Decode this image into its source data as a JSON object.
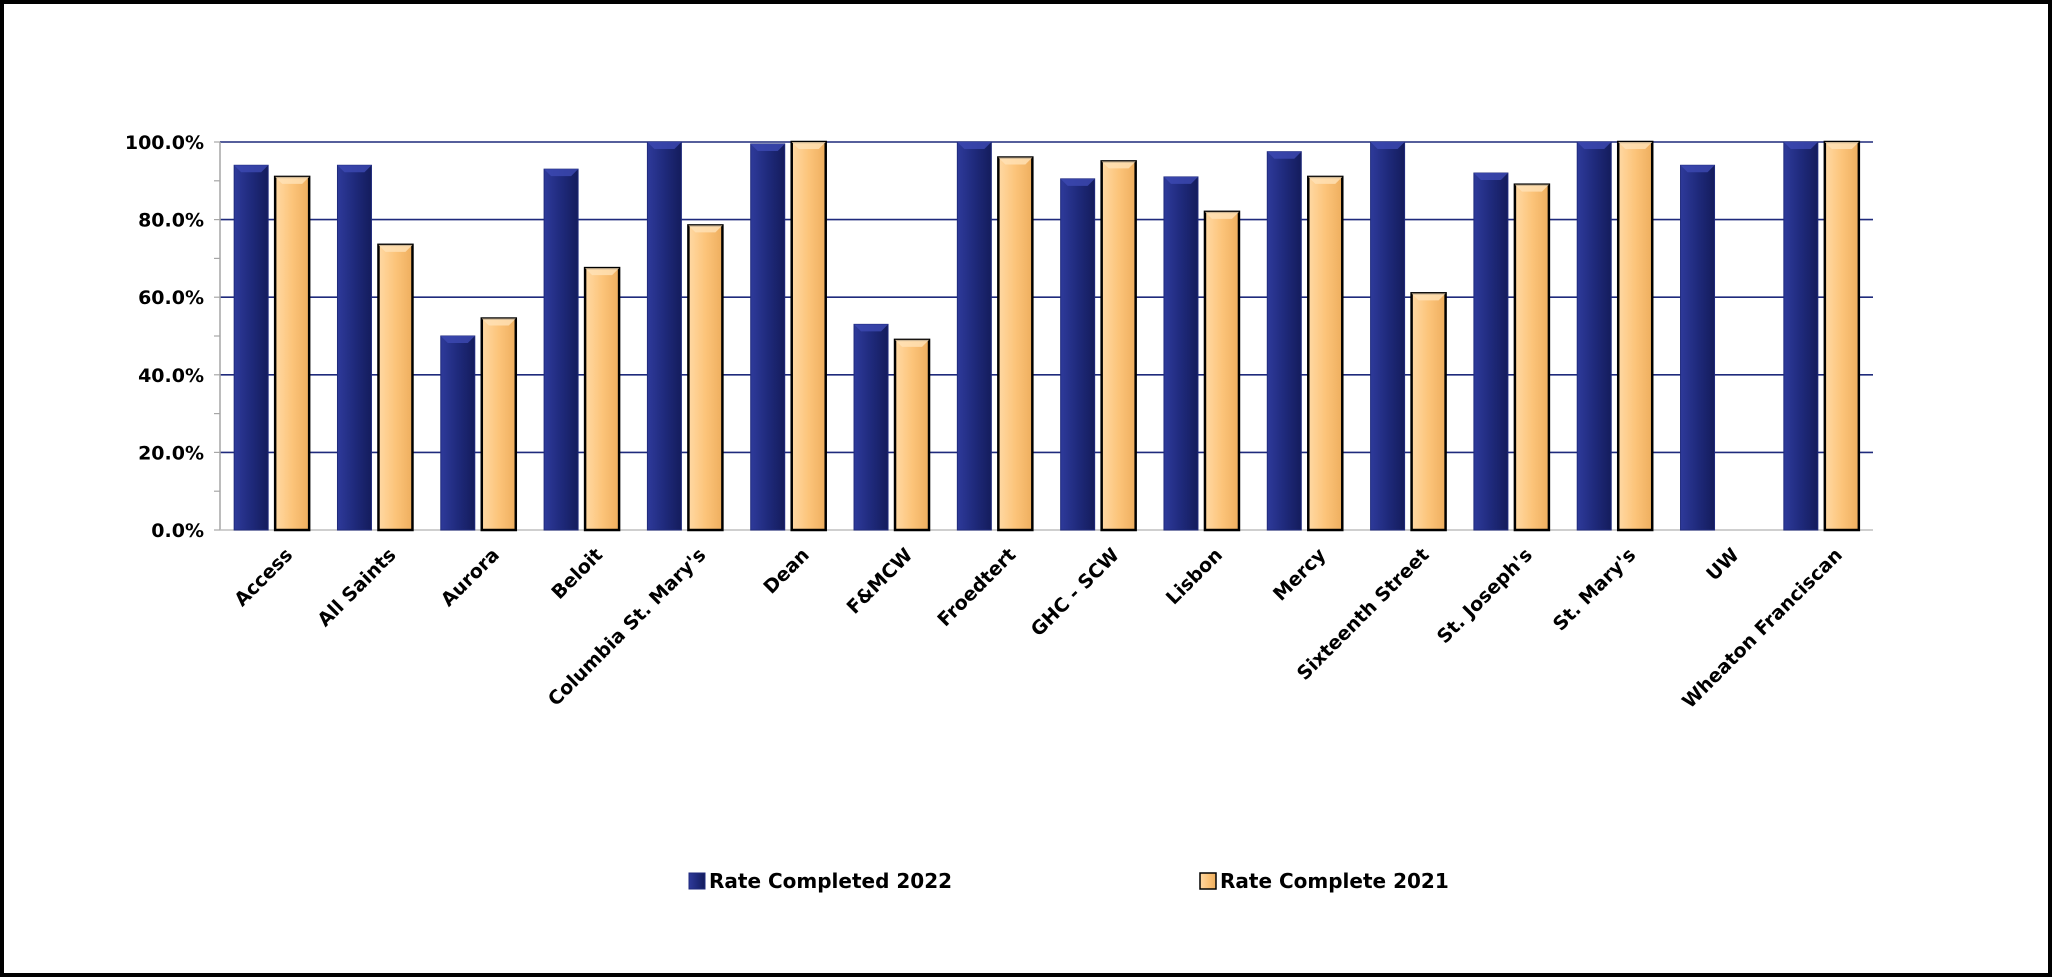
{
  "chart_data": {
    "type": "bar",
    "categories": [
      "Access",
      "All Saints",
      "Aurora",
      "Beloit",
      "Columbia St. Mary's",
      "Dean",
      "F&MCW",
      "Froedtert",
      "GHC - SCW",
      "Lisbon",
      "Mercy",
      "Sixteenth Street",
      "St. Joseph's",
      "St. Mary's",
      "UW",
      "Wheaton Franciscan"
    ],
    "series": [
      {
        "name": "Rate Completed 2022",
        "color": "#1f2a7c",
        "values": [
          94.0,
          94.0,
          50.0,
          93.0,
          100.0,
          99.5,
          53.0,
          100.0,
          90.5,
          91.0,
          97.5,
          100.0,
          92.0,
          100.0,
          94.0,
          100.0
        ]
      },
      {
        "name": "Rate Complete 2021",
        "color": "#fcc47a",
        "values": [
          91.0,
          73.5,
          54.5,
          67.5,
          78.5,
          100.0,
          49.0,
          96.0,
          95.0,
          82.0,
          91.0,
          61.0,
          89.0,
          100.0,
          null,
          100.0
        ]
      }
    ],
    "ylim": [
      0,
      100
    ],
    "yticks": [
      "0.0%",
      "20.0%",
      "40.0%",
      "60.0%",
      "80.0%",
      "100.0%"
    ],
    "ytick_values": [
      0,
      20,
      40,
      60,
      80,
      100
    ],
    "grid": true,
    "legend_position": "bottom"
  }
}
